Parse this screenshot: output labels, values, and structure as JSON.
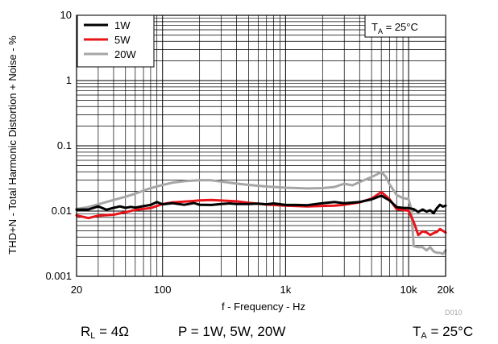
{
  "chart_data": {
    "type": "line",
    "xscale": "log",
    "yscale": "log",
    "xlim": [
      20,
      20000
    ],
    "ylim": [
      0.001,
      10
    ],
    "xlabel": "f - Frequency - Hz",
    "ylabel": "THD+N - Total Harmonic Distortion + Noise - %",
    "x_ticks": [
      {
        "value": 20,
        "label": "20"
      },
      {
        "value": 100,
        "label": "100"
      },
      {
        "value": 1000,
        "label": "1k"
      },
      {
        "value": 10000,
        "label": "10k"
      },
      {
        "value": 20000,
        "label": "20k"
      }
    ],
    "y_ticks": [
      {
        "value": 0.001,
        "label": "0.001"
      },
      {
        "value": 0.01,
        "label": "0.01"
      },
      {
        "value": 0.1,
        "label": "0.1"
      },
      {
        "value": 1,
        "label": "1"
      },
      {
        "value": 10,
        "label": "10"
      }
    ],
    "grid": true,
    "legend_position": "top-left",
    "annotation": {
      "main": "T",
      "sub": "A",
      "rest": " = 25°C"
    },
    "series": [
      {
        "name": "1W",
        "color": "#000000",
        "points": [
          [
            20,
            0.0105
          ],
          [
            25,
            0.0106
          ],
          [
            30,
            0.0118
          ],
          [
            35,
            0.0105
          ],
          [
            40,
            0.0112
          ],
          [
            45,
            0.0118
          ],
          [
            50,
            0.0112
          ],
          [
            55,
            0.0116
          ],
          [
            60,
            0.0113
          ],
          [
            70,
            0.0119
          ],
          [
            80,
            0.0124
          ],
          [
            90,
            0.0138
          ],
          [
            100,
            0.0127
          ],
          [
            120,
            0.0132
          ],
          [
            150,
            0.0125
          ],
          [
            180,
            0.0133
          ],
          [
            200,
            0.0125
          ],
          [
            250,
            0.0124
          ],
          [
            300,
            0.0128
          ],
          [
            350,
            0.0131
          ],
          [
            400,
            0.0128
          ],
          [
            500,
            0.0128
          ],
          [
            600,
            0.013
          ],
          [
            700,
            0.0127
          ],
          [
            800,
            0.0131
          ],
          [
            1000,
            0.0124
          ],
          [
            1200,
            0.0124
          ],
          [
            1500,
            0.0123
          ],
          [
            2000,
            0.0132
          ],
          [
            2500,
            0.0138
          ],
          [
            3000,
            0.0132
          ],
          [
            4000,
            0.0138
          ],
          [
            5000,
            0.0151
          ],
          [
            6000,
            0.0172
          ],
          [
            7000,
            0.0146
          ],
          [
            8000,
            0.0115
          ],
          [
            9000,
            0.0112
          ],
          [
            10000,
            0.0111
          ],
          [
            11000,
            0.0107
          ],
          [
            12000,
            0.0097
          ],
          [
            13000,
            0.0106
          ],
          [
            14000,
            0.0098
          ],
          [
            15000,
            0.0103
          ],
          [
            16000,
            0.0093
          ],
          [
            17000,
            0.0111
          ],
          [
            18000,
            0.0125
          ],
          [
            19000,
            0.0117
          ],
          [
            20000,
            0.0121
          ]
        ]
      },
      {
        "name": "5W",
        "color": "#e8141a",
        "points": [
          [
            20,
            0.0086
          ],
          [
            25,
            0.0078
          ],
          [
            30,
            0.0085
          ],
          [
            40,
            0.0088
          ],
          [
            50,
            0.0096
          ],
          [
            60,
            0.0104
          ],
          [
            70,
            0.0108
          ],
          [
            80,
            0.0111
          ],
          [
            100,
            0.0128
          ],
          [
            120,
            0.0136
          ],
          [
            150,
            0.014
          ],
          [
            180,
            0.0143
          ],
          [
            200,
            0.0146
          ],
          [
            250,
            0.0148
          ],
          [
            300,
            0.0145
          ],
          [
            400,
            0.0141
          ],
          [
            500,
            0.0134
          ],
          [
            700,
            0.0126
          ],
          [
            1000,
            0.0121
          ],
          [
            1500,
            0.0118
          ],
          [
            2000,
            0.012
          ],
          [
            2500,
            0.0121
          ],
          [
            3000,
            0.0125
          ],
          [
            4000,
            0.0136
          ],
          [
            5000,
            0.0155
          ],
          [
            6000,
            0.0196
          ],
          [
            7000,
            0.0152
          ],
          [
            8000,
            0.0107
          ],
          [
            9000,
            0.0104
          ],
          [
            10000,
            0.0101
          ],
          [
            11000,
            0.0068
          ],
          [
            12000,
            0.0043
          ],
          [
            13000,
            0.0049
          ],
          [
            14000,
            0.0047
          ],
          [
            15000,
            0.0043
          ],
          [
            16000,
            0.0046
          ],
          [
            17000,
            0.0048
          ],
          [
            18000,
            0.0053
          ],
          [
            20000,
            0.0047
          ]
        ]
      },
      {
        "name": "20W",
        "color": "#a6a6a6",
        "points": [
          [
            20,
            0.0108
          ],
          [
            25,
            0.0115
          ],
          [
            30,
            0.0127
          ],
          [
            40,
            0.0148
          ],
          [
            50,
            0.0166
          ],
          [
            60,
            0.0185
          ],
          [
            70,
            0.0206
          ],
          [
            80,
            0.0224
          ],
          [
            100,
            0.0251
          ],
          [
            120,
            0.0272
          ],
          [
            150,
            0.0287
          ],
          [
            180,
            0.0294
          ],
          [
            200,
            0.0298
          ],
          [
            250,
            0.0296
          ],
          [
            300,
            0.0283
          ],
          [
            400,
            0.0264
          ],
          [
            500,
            0.0252
          ],
          [
            700,
            0.0238
          ],
          [
            1000,
            0.0228
          ],
          [
            1500,
            0.0222
          ],
          [
            2000,
            0.0225
          ],
          [
            2500,
            0.0234
          ],
          [
            3000,
            0.0262
          ],
          [
            3500,
            0.0248
          ],
          [
            4000,
            0.0278
          ],
          [
            5000,
            0.0333
          ],
          [
            6000,
            0.0395
          ],
          [
            6500,
            0.034
          ],
          [
            7000,
            0.0258
          ],
          [
            8000,
            0.0176
          ],
          [
            9000,
            0.0158
          ],
          [
            10000,
            0.0153
          ],
          [
            10500,
            0.0108
          ],
          [
            11000,
            0.0029
          ],
          [
            12000,
            0.0028
          ],
          [
            13000,
            0.0028
          ],
          [
            14000,
            0.0025
          ],
          [
            15000,
            0.0028
          ],
          [
            16000,
            0.0024
          ],
          [
            17000,
            0.0023
          ],
          [
            18000,
            0.0023
          ],
          [
            19000,
            0.0022
          ],
          [
            20000,
            0.0025
          ]
        ]
      }
    ]
  },
  "caption": {
    "load": {
      "main": "R",
      "sub": "L",
      "rest": " = 4Ω"
    },
    "power": "P = 1W, 5W, 20W",
    "temperature": {
      "main": "T",
      "sub": "A",
      "rest": " = 25°C"
    }
  },
  "figure_code": "D010"
}
